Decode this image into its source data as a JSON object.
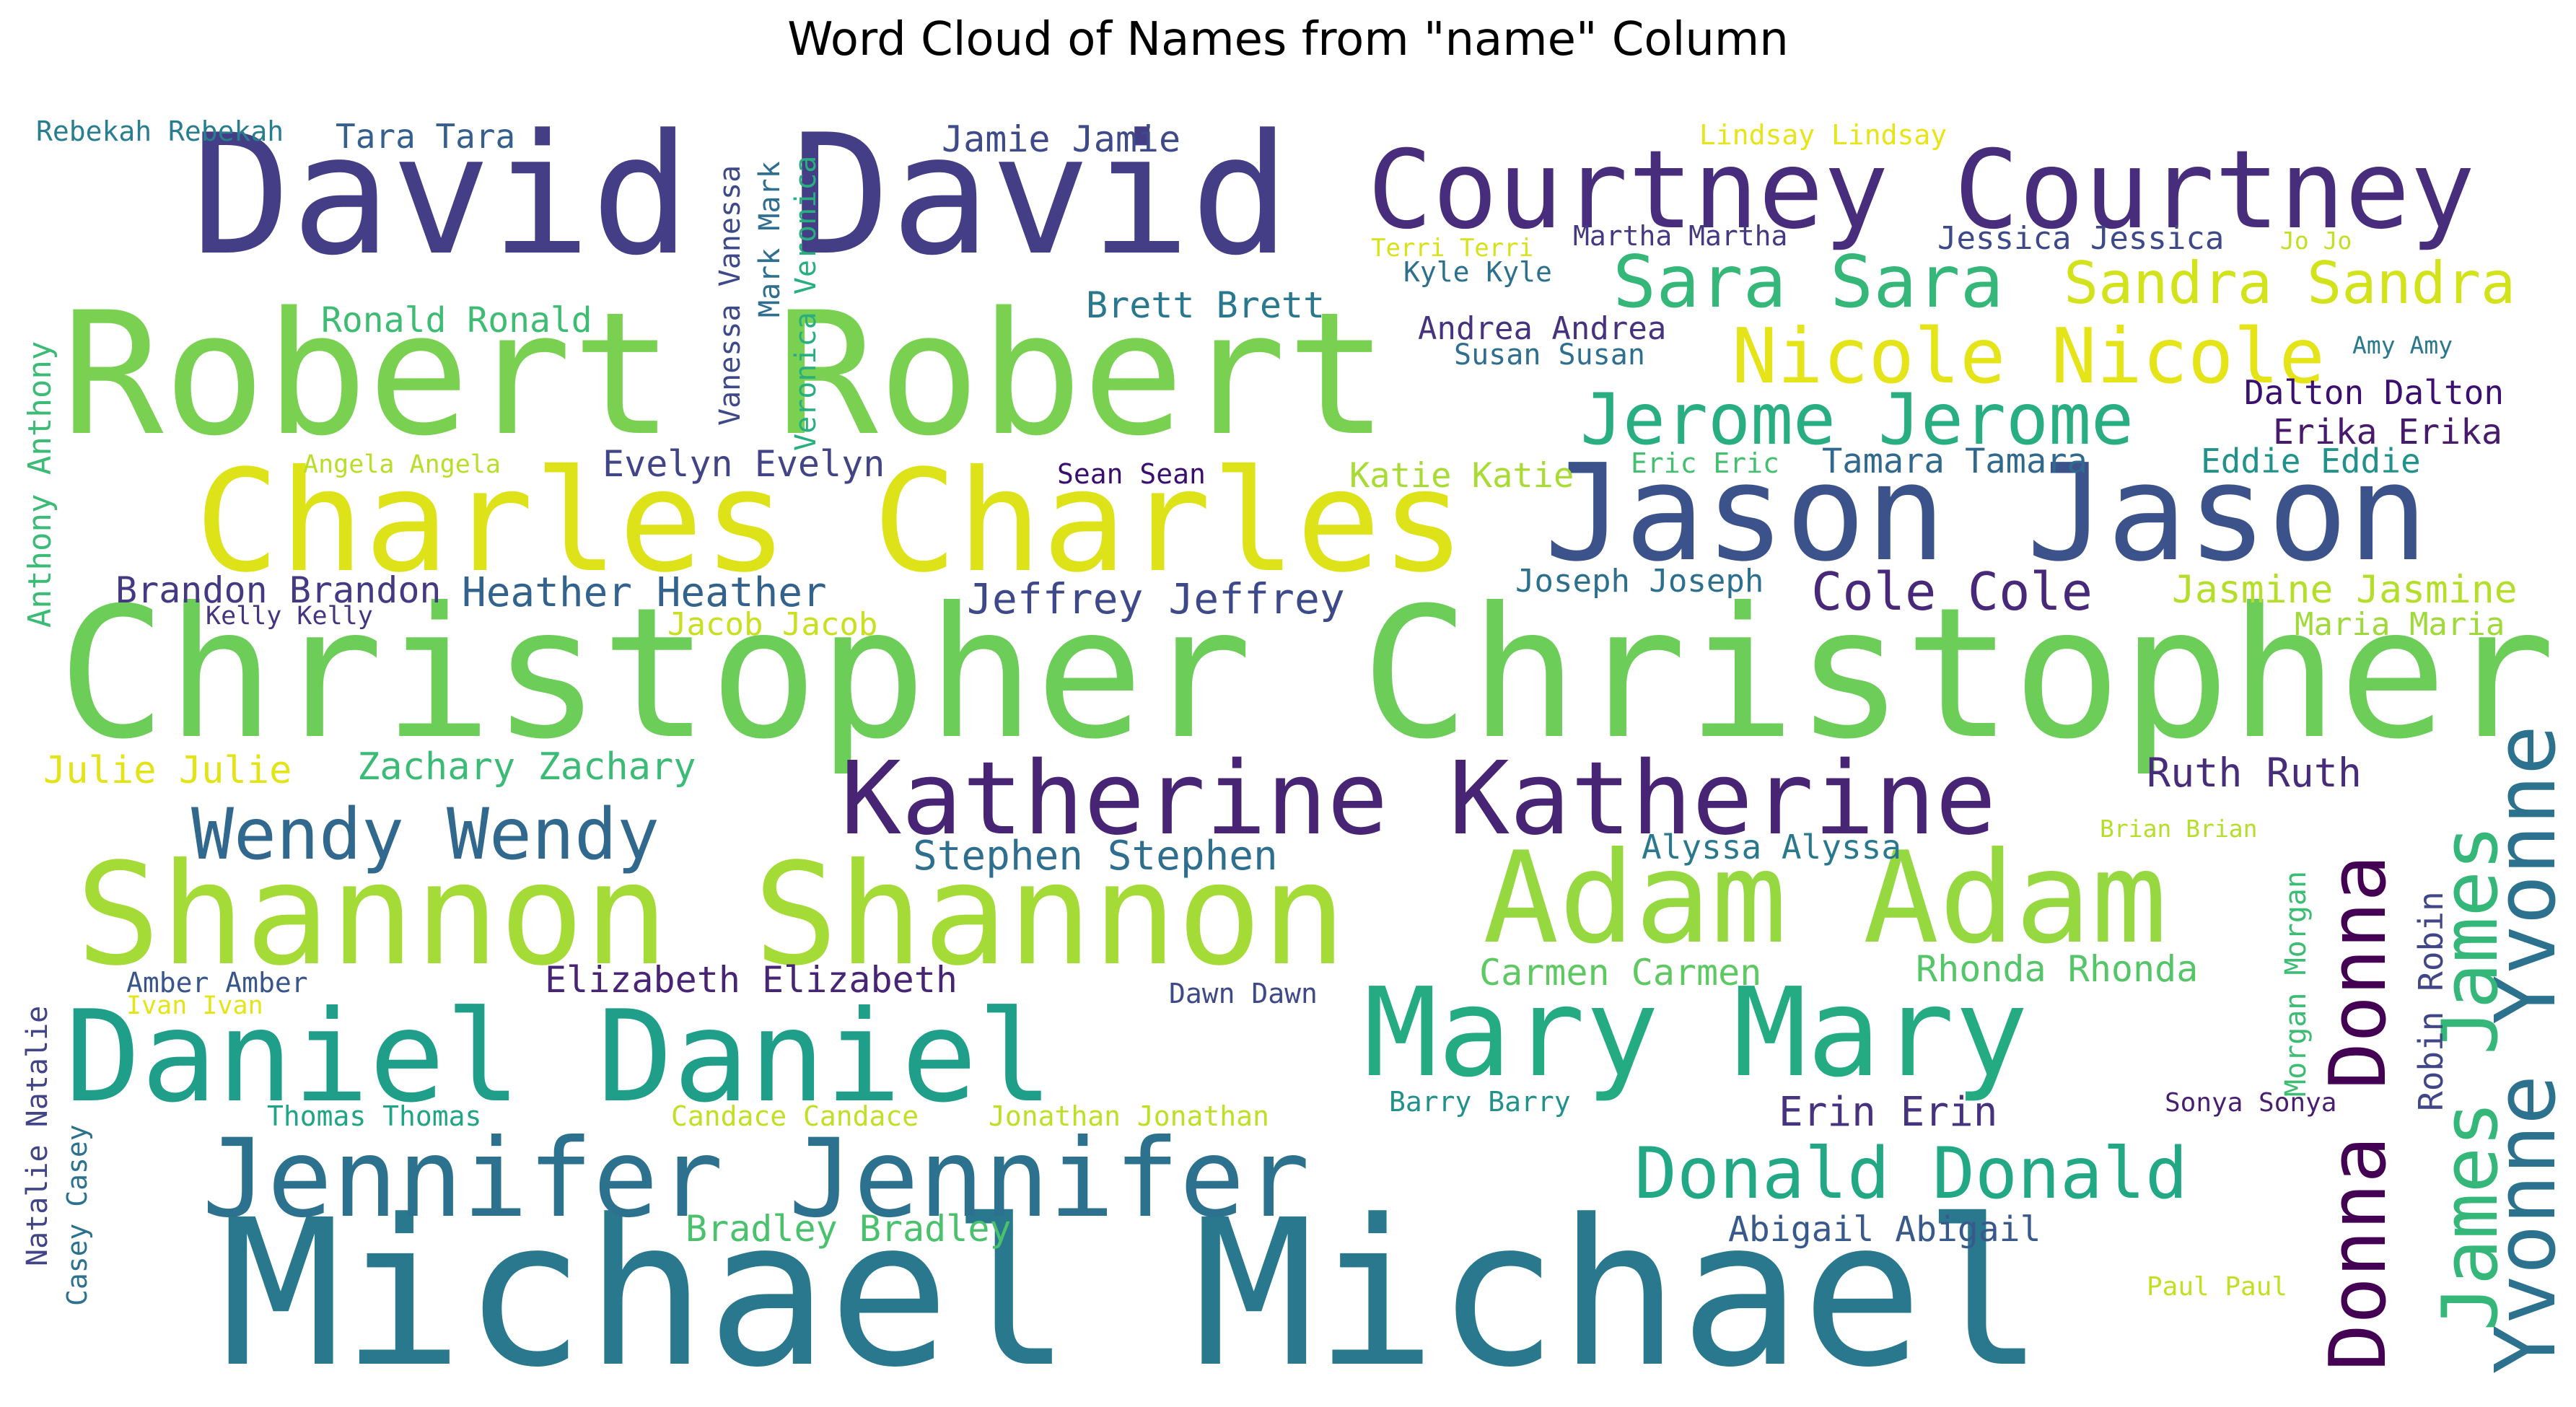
{
  "chart_data": {
    "type": "wordcloud",
    "title": "Word Cloud of Names from \"name\" Column",
    "words": [
      {
        "text": "Michael Michael",
        "weight": 1.0,
        "color": "#2a788e"
      },
      {
        "text": "Christopher Christopher",
        "weight": 0.92,
        "color": "#6ccd59"
      },
      {
        "text": "Robert Robert",
        "weight": 0.86,
        "color": "#7ad151"
      },
      {
        "text": "David David",
        "weight": 0.84,
        "color": "#433e85"
      },
      {
        "text": "Charles Charles",
        "weight": 0.72,
        "color": "#dde318"
      },
      {
        "text": "Shannon Shannon",
        "weight": 0.72,
        "color": "#a5db36"
      },
      {
        "text": "Jason Jason",
        "weight": 0.68,
        "color": "#3b528b"
      },
      {
        "text": "Adam Adam",
        "weight": 0.64,
        "color": "#95d840"
      },
      {
        "text": "Daniel Daniel",
        "weight": 0.64,
        "color": "#1f9e89"
      },
      {
        "text": "Mary Mary",
        "weight": 0.62,
        "color": "#25ab82"
      },
      {
        "text": "Courtney Courtney",
        "weight": 0.56,
        "color": "#472d7b"
      },
      {
        "text": "Jennifer Jennifer",
        "weight": 0.56,
        "color": "#2c728e"
      },
      {
        "text": "Katherine Katherine",
        "weight": 0.52,
        "color": "#482475"
      },
      {
        "text": "Yvonne Yvonne",
        "weight": 0.42,
        "color": "#2c728e"
      },
      {
        "text": "Donna Donna",
        "weight": 0.4,
        "color": "#440154"
      },
      {
        "text": "James James",
        "weight": 0.39,
        "color": "#35b779"
      },
      {
        "text": "Nicole Nicole",
        "weight": 0.38,
        "color": "#e5e419"
      },
      {
        "text": "Sara Sara",
        "weight": 0.37,
        "color": "#35b779"
      },
      {
        "text": "Jerome Jerome",
        "weight": 0.36,
        "color": "#28ae80"
      },
      {
        "text": "Wendy Wendy",
        "weight": 0.36,
        "color": "#31688e"
      },
      {
        "text": "Donald Donald",
        "weight": 0.36,
        "color": "#22a884"
      },
      {
        "text": "Sandra Sandra",
        "weight": 0.29,
        "color": "#d2e21b"
      },
      {
        "text": "Cole Cole",
        "weight": 0.26,
        "color": "#482878"
      },
      {
        "text": "Jeffrey Jeffrey",
        "weight": 0.22,
        "color": "#3e4989"
      },
      {
        "text": "Heather Heather",
        "weight": 0.21,
        "color": "#33638d"
      },
      {
        "text": "Stephen Stephen",
        "weight": 0.21,
        "color": "#2e6e8e"
      },
      {
        "text": "Erin Erin",
        "weight": 0.21,
        "color": "#46327e"
      },
      {
        "text": "Ruth Ruth",
        "weight": 0.2,
        "color": "#472c7a"
      },
      {
        "text": "Jasmine Jasmine",
        "weight": 0.19,
        "color": "#b5de2b"
      },
      {
        "text": "Zachary Zachary",
        "weight": 0.19,
        "color": "#3bbb75"
      },
      {
        "text": "Julie Julie",
        "weight": 0.19,
        "color": "#e2e418"
      },
      {
        "text": "Brandon Brandon",
        "weight": 0.18,
        "color": "#443983"
      },
      {
        "text": "Evelyn Evelyn",
        "weight": 0.18,
        "color": "#414487"
      },
      {
        "text": "Elizabeth Elizabeth",
        "weight": 0.18,
        "color": "#482475"
      },
      {
        "text": "Jamie Jamie",
        "weight": 0.18,
        "color": "#3e4a89"
      },
      {
        "text": "Brett Brett",
        "weight": 0.18,
        "color": "#2a788e"
      },
      {
        "text": "Bradley Bradley",
        "weight": 0.18,
        "color": "#4ac16d"
      },
      {
        "text": "Carmen Carmen",
        "weight": 0.18,
        "color": "#5ec962"
      },
      {
        "text": "Rhonda Rhonda",
        "weight": 0.18,
        "color": "#54c568"
      },
      {
        "text": "Erika Erika",
        "weight": 0.18,
        "color": "#481a6c"
      },
      {
        "text": "Abigail Abigail",
        "weight": 0.17,
        "color": "#38598c"
      },
      {
        "text": "Ronald Ronald",
        "weight": 0.17,
        "color": "#3fbc73"
      },
      {
        "text": "Tamara Tamara",
        "weight": 0.17,
        "color": "#31688e"
      },
      {
        "text": "Katie Katie",
        "weight": 0.17,
        "color": "#a8db34"
      },
      {
        "text": "Alyssa Alyssa",
        "weight": 0.17,
        "color": "#2a788e"
      },
      {
        "text": "Dalton Dalton",
        "weight": 0.17,
        "color": "#3b0f70"
      },
      {
        "text": "Eddie Eddie",
        "weight": 0.17,
        "color": "#21918c"
      },
      {
        "text": "Tara Tara",
        "weight": 0.17,
        "color": "#355f8d"
      },
      {
        "text": "Robin Robin",
        "weight": 0.17,
        "color": "#404688"
      },
      {
        "text": "Joseph Joseph",
        "weight": 0.16,
        "color": "#2d708e"
      },
      {
        "text": "Jacob Jacob",
        "weight": 0.16,
        "color": "#c8e020"
      },
      {
        "text": "Jessica Jessica",
        "weight": 0.16,
        "color": "#3e4989"
      },
      {
        "text": "Andrea Andrea",
        "weight": 0.16,
        "color": "#46327e"
      },
      {
        "text": "Anthony Anthony",
        "weight": 0.16,
        "color": "#3bbb75"
      },
      {
        "text": "Maria Maria",
        "weight": 0.16,
        "color": "#9fda3a"
      },
      {
        "text": "Vanessa Vanessa",
        "weight": 0.15,
        "color": "#3e4989"
      },
      {
        "text": "Mark Mark",
        "weight": 0.15,
        "color": "#2e6e8e"
      },
      {
        "text": "Veronica Veronica",
        "weight": 0.15,
        "color": "#29af7f"
      },
      {
        "text": "Morgan Morgan",
        "weight": 0.15,
        "color": "#3dbc74"
      },
      {
        "text": "Natalie Natalie",
        "weight": 0.15,
        "color": "#414487"
      },
      {
        "text": "Susan Susan",
        "weight": 0.15,
        "color": "#2e6e8e"
      },
      {
        "text": "Sean Sean",
        "weight": 0.14,
        "color": "#3b0f70"
      },
      {
        "text": "Eric Eric",
        "weight": 0.14,
        "color": "#44bf70"
      },
      {
        "text": "Lindsay Lindsay",
        "weight": 0.14,
        "color": "#e7e419"
      },
      {
        "text": "Kyle Kyle",
        "weight": 0.14,
        "color": "#2d708e"
      },
      {
        "text": "Martha Martha",
        "weight": 0.14,
        "color": "#443983"
      },
      {
        "text": "Rebekah Rebekah",
        "weight": 0.14,
        "color": "#287d8e"
      },
      {
        "text": "Candace Candace",
        "weight": 0.14,
        "color": "#c0df25"
      },
      {
        "text": "Jonathan Jonathan",
        "weight": 0.14,
        "color": "#bddf26"
      },
      {
        "text": "Barry Barry",
        "weight": 0.14,
        "color": "#21918c"
      },
      {
        "text": "Thomas Thomas",
        "weight": 0.14,
        "color": "#20a486"
      },
      {
        "text": "Amber Amber",
        "weight": 0.14,
        "color": "#39568c"
      },
      {
        "text": "Dawn Dawn",
        "weight": 0.14,
        "color": "#3e4989"
      },
      {
        "text": "Casey Casey",
        "weight": 0.14,
        "color": "#2c728e"
      },
      {
        "text": "Sonya Sonya",
        "weight": 0.13,
        "color": "#481f70"
      },
      {
        "text": "Paul Paul",
        "weight": 0.13,
        "color": "#c2df23"
      },
      {
        "text": "Angela Angela",
        "weight": 0.13,
        "color": "#b8de29"
      },
      {
        "text": "Kelly Kelly",
        "weight": 0.13,
        "color": "#453581"
      },
      {
        "text": "Ivan Ivan",
        "weight": 0.13,
        "color": "#e5e419"
      },
      {
        "text": "Terri Terri",
        "weight": 0.13,
        "color": "#d8e219"
      },
      {
        "text": "Brian Brian",
        "weight": 0.12,
        "color": "#b5de2b"
      },
      {
        "text": "Jo Jo",
        "weight": 0.12,
        "color": "#c0df25"
      },
      {
        "text": "Amy Amy",
        "weight": 0.12,
        "color": "#2a788e"
      }
    ]
  }
}
